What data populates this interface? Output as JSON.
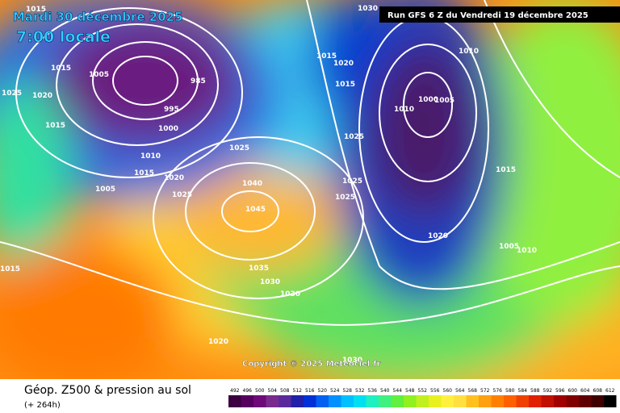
{
  "header": {
    "date": "Mardi 30 décembre 2025",
    "time": "7:00 locale",
    "run": "Run GFS 6 Z du Vendredi 19 décembre 2025"
  },
  "map": {
    "copyright": "Copyright © 2025 Meteociel.fr",
    "isobar_labels": [
      1015,
      1025,
      1020,
      1015,
      1005,
      1015,
      1000,
      995,
      985,
      1010,
      1015,
      1020,
      1025,
      1005,
      1040,
      1045,
      1025,
      1035,
      1030,
      1030,
      1020,
      1015,
      1030,
      1015,
      1020,
      1015,
      1025,
      1025,
      1025,
      1030,
      1010,
      1010,
      1005,
      1000,
      1015,
      1020,
      1005,
      1010
    ]
  },
  "footer": {
    "title": "Géop. Z500 & pression au sol",
    "lead": "(+ 264h)"
  },
  "scale": {
    "labels": [
      492,
      496,
      500,
      504,
      508,
      512,
      516,
      520,
      524,
      528,
      532,
      536,
      540,
      544,
      548,
      552,
      556,
      560,
      564,
      568,
      572,
      576,
      580,
      584,
      588,
      592,
      596,
      600,
      604,
      608,
      612
    ],
    "colors": [
      "#3a0040",
      "#560060",
      "#6e0a78",
      "#7a2a8c",
      "#5a2a9c",
      "#2020a8",
      "#0030d8",
      "#0060f0",
      "#0090ff",
      "#00c0ff",
      "#00e0f0",
      "#20f0c0",
      "#40f080",
      "#60f040",
      "#90f020",
      "#c0f020",
      "#e8f020",
      "#fff040",
      "#ffe040",
      "#ffc020",
      "#ffa010",
      "#ff8000",
      "#ff6000",
      "#f04000",
      "#e02000",
      "#c01000",
      "#a00000",
      "#800000",
      "#600000",
      "#400000",
      "#000000"
    ]
  }
}
